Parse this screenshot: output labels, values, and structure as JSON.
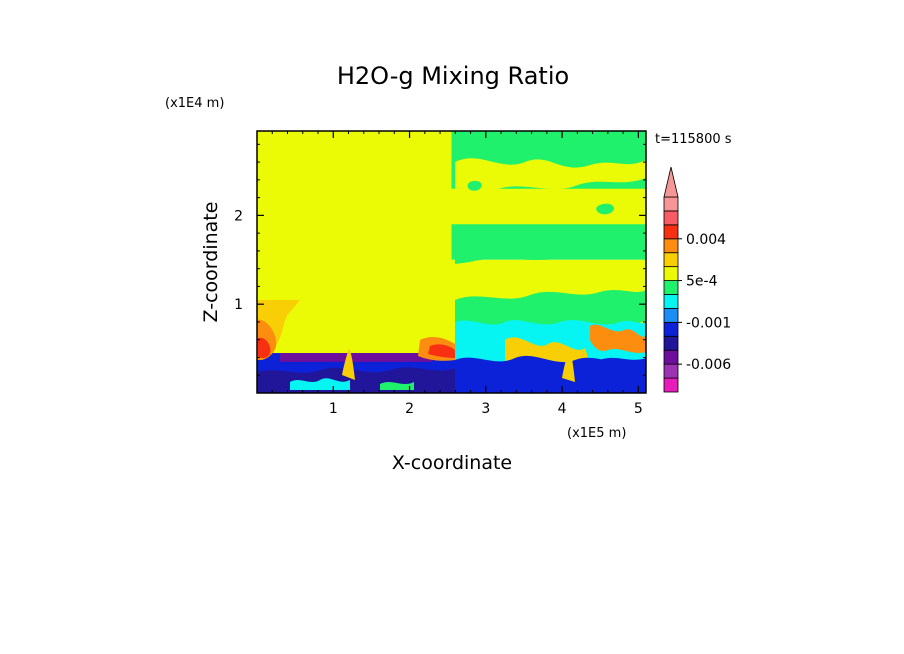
{
  "chart_data": {
    "type": "heatmap",
    "title": "H2O-g Mixing Ratio",
    "xlabel": "X-coordinate",
    "ylabel": "Z-coordinate",
    "x_unit_label": "(x1E5 m)",
    "y_unit_label": "(x1E4 m)",
    "time_label": "t=115800 s",
    "xlim": [
      0,
      5.1
    ],
    "ylim": [
      0,
      2.95
    ],
    "x_ticks": [
      1,
      2,
      3,
      4,
      5
    ],
    "y_ticks": [
      1,
      2
    ],
    "x_tick_labels": [
      "1",
      "2",
      "3",
      "4",
      "5"
    ],
    "y_tick_labels": [
      "1",
      "2"
    ],
    "grid": false,
    "colorbar": {
      "orientation": "vertical",
      "extend": "max",
      "levels": [
        -0.01,
        -0.008,
        -0.006,
        -0.004,
        -0.002,
        -0.001,
        -0.0005,
        0,
        0.0005,
        0.001,
        0.002,
        0.004,
        0.006,
        0.008
      ],
      "colors": [
        "#e81bbb",
        "#9c33b4",
        "#6d0f9c",
        "#21169a",
        "#0c22d8",
        "#1a8ef2",
        "#06f5f2",
        "#1ff16c",
        "#ebfb06",
        "#f8cf05",
        "#fc8d0e",
        "#f92f12",
        "#f85b63",
        "#f79696"
      ],
      "labeled_values": [
        "0.004",
        "5e-4",
        "-0.001",
        "-0.006"
      ]
    },
    "field_regions": [
      {
        "name": "left upper domain",
        "x": [
          0,
          2.55
        ],
        "z": [
          0.4,
          2.95
        ],
        "color": "#ebfb06"
      },
      {
        "name": "right upper domain",
        "x": [
          2.55,
          5.1
        ],
        "z": [
          1.5,
          2.95
        ],
        "color": "#1ff16c"
      },
      {
        "name": "right middle band",
        "x": [
          2.55,
          5.1
        ],
        "z": [
          1.9,
          2.3
        ],
        "color": "#ebfb06"
      },
      {
        "name": "right lower domain",
        "x": [
          2.55,
          5.1
        ],
        "z": [
          0.45,
          1.5
        ],
        "color": "#ebfb06"
      },
      {
        "name": "boundary layer",
        "x": [
          0,
          5.1
        ],
        "z": [
          0,
          0.45
        ],
        "color": "#0c22d8"
      },
      {
        "name": "low inversion strip",
        "x": [
          0.3,
          2.3
        ],
        "z": [
          0.35,
          0.45
        ],
        "color": "#6d0f9c"
      }
    ]
  }
}
